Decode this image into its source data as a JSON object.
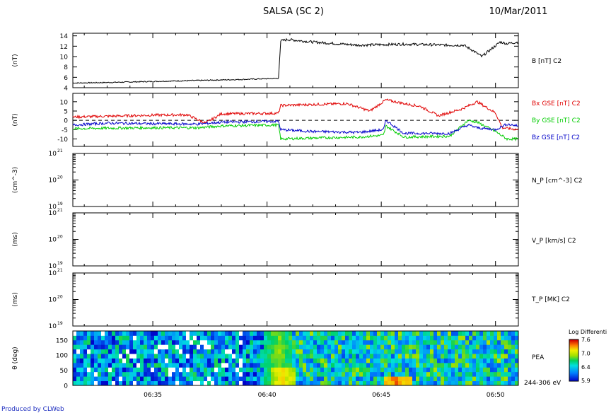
{
  "header": {
    "title": "SALSA (SC 2)",
    "date": "10/Mar/2011"
  },
  "footer": {
    "credit": "Produced by CLWeb"
  },
  "colors": {
    "red": "#e00000",
    "green": "#00cc00",
    "blue": "#0000c8",
    "black": "#000000",
    "credit": "#2030c0"
  },
  "time_axis": {
    "tick_labels": [
      "06:35",
      "06:40",
      "06:45",
      "06:50"
    ],
    "tick_minutes": [
      35,
      40,
      45,
      50
    ],
    "range_minutes": [
      31.5,
      51
    ]
  },
  "chart_data": [
    {
      "type": "line",
      "ylabel": "(nT)",
      "right_labels": [
        "B [nT] C2"
      ],
      "ylim": [
        4,
        14.5
      ],
      "yticks": [
        4,
        6,
        8,
        10,
        12,
        14
      ],
      "segments": [
        {
          "x": [
            31.5,
            33,
            35,
            37,
            39,
            40.5
          ],
          "y": [
            4.9,
            5.0,
            5.2,
            5.4,
            5.6,
            5.8
          ]
        },
        {
          "x": [
            40.6,
            40.9,
            42,
            44,
            46,
            48,
            48.6,
            49.0,
            49.4,
            49.8,
            50.2,
            50.5,
            51
          ],
          "y": [
            13.0,
            13.3,
            12.8,
            12.2,
            12.4,
            12.2,
            12.2,
            11.2,
            10.0,
            11.4,
            12.8,
            12.5,
            12.8
          ]
        }
      ]
    },
    {
      "type": "line",
      "ylabel": "(nT)",
      "right_labels": [
        "Bx GSE [nT] C2",
        "By GSE [nT] C2",
        "Bz GSE [nT] C2"
      ],
      "ylim": [
        -14,
        14.5
      ],
      "yticks": [
        -10,
        -5,
        0,
        5,
        10
      ],
      "zero_line": true,
      "series": [
        {
          "name": "Bx GSE [nT] C2",
          "color": "red",
          "x": [
            31.5,
            33,
            35,
            36.5,
            37.3,
            38,
            40.5,
            40.6,
            42,
            43.5,
            44.5,
            45.2,
            46,
            46.7,
            47.5,
            48.5,
            49.2,
            50,
            50.3,
            51
          ],
          "y": [
            1.8,
            2.2,
            2.8,
            3.0,
            -1.5,
            3.5,
            3.8,
            8,
            8.5,
            9,
            5,
            11,
            9,
            7.5,
            2.5,
            6,
            10,
            4,
            -4,
            -5
          ]
        },
        {
          "name": "By GSE [nT] C2",
          "color": "green",
          "x": [
            31.5,
            33,
            35,
            37,
            38,
            40.5,
            40.6,
            42,
            44,
            45.1,
            45.2,
            46,
            48,
            48.8,
            49.2,
            50,
            50.5,
            51
          ],
          "y": [
            -4.5,
            -4.2,
            -4,
            -4,
            -3,
            -2.5,
            -10,
            -9.5,
            -9,
            -8,
            -3,
            -9,
            -8.5,
            0,
            -1,
            -6,
            -10,
            -10
          ]
        },
        {
          "name": "Bz GSE [nT] C2",
          "color": "blue",
          "x": [
            31.5,
            33,
            35,
            37,
            38,
            40.5,
            40.6,
            42,
            44,
            45.1,
            45.2,
            46,
            48,
            48.8,
            49.2,
            50,
            50.5,
            51
          ],
          "y": [
            -2.5,
            -1.5,
            -1.8,
            -2,
            -1,
            -0.5,
            -5,
            -6,
            -6.5,
            -5,
            0,
            -7,
            -7,
            -2.5,
            -4,
            -5,
            -2,
            -3
          ]
        }
      ]
    },
    {
      "type": "line",
      "ylabel": "(cm^-3)",
      "right_labels": [
        "N_P [cm^-3] C2"
      ],
      "log": true,
      "ylim": [
        1e+19,
        1e+21
      ],
      "ytick_labels": [
        {
          "base": "10",
          "exp": "21"
        },
        {
          "base": "10",
          "exp": "20"
        },
        {
          "base": "10",
          "exp": "19"
        }
      ],
      "series": []
    },
    {
      "type": "line",
      "ylabel": "(ms)",
      "right_labels": [
        "V_P [km/s] C2"
      ],
      "log": true,
      "ylim": [
        1e+19,
        1e+21
      ],
      "ytick_labels": [
        {
          "base": "10",
          "exp": "21"
        },
        {
          "base": "10",
          "exp": "20"
        },
        {
          "base": "10",
          "exp": "19"
        }
      ],
      "series": []
    },
    {
      "type": "line",
      "ylabel": "(ms)",
      "right_labels": [
        "T_P [MK] C2"
      ],
      "log": true,
      "ylim": [
        1e+19,
        1e+21
      ],
      "ytick_labels": [
        {
          "base": "10",
          "exp": "21"
        },
        {
          "base": "10",
          "exp": "20"
        },
        {
          "base": "10",
          "exp": "19"
        }
      ],
      "series": []
    },
    {
      "type": "heatmap",
      "ylabel": "θ (deg)",
      "right_labels": [
        "PEA",
        "244-306 eV"
      ],
      "ylim": [
        0,
        180
      ],
      "yticks": [
        0,
        50,
        100,
        150
      ],
      "colorbar": {
        "title": "Log Differenti",
        "min": 5.9,
        "max": 7.6,
        "ticks": [
          "7.6",
          "7.0",
          "6.4",
          "5.9"
        ]
      },
      "rows": 12,
      "hot_spots": [
        {
          "minute": 40.7,
          "theta_max": 60,
          "level": 7.2
        },
        {
          "minute": 45.7,
          "theta_max": 30,
          "level": 7.4
        },
        {
          "minute": 40.5,
          "theta_max": 180,
          "level": 6.9
        }
      ]
    }
  ]
}
